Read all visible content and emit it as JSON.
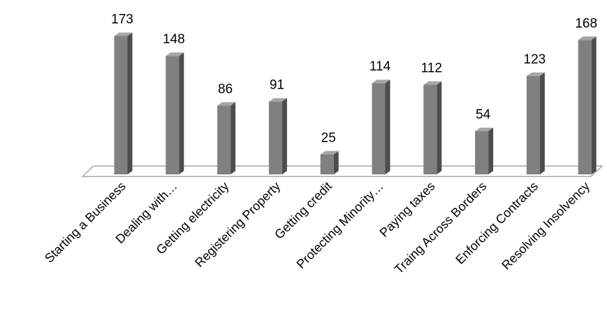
{
  "chart_data": {
    "type": "bar",
    "style": "3d-column",
    "categories": [
      "Starting a Business",
      "Dealing with…",
      "Getting electricity",
      "Registering Property",
      "Getting credit",
      "Protecting Minority…",
      "Paying taxes",
      "Traing Across Borders",
      "Enforcing Contracts",
      "Resolving Insolvency"
    ],
    "values": [
      173,
      148,
      86,
      91,
      25,
      114,
      112,
      54,
      123,
      168
    ],
    "ylim": [
      0,
      180
    ],
    "grid": false,
    "legend": "none",
    "data_labels": true,
    "colors": {
      "bar_front": "#808080",
      "bar_side": "#4d4d4d",
      "bar_top": "#a6a6a6",
      "floor_stroke": "#a6a6a6",
      "text": "#000000"
    }
  }
}
